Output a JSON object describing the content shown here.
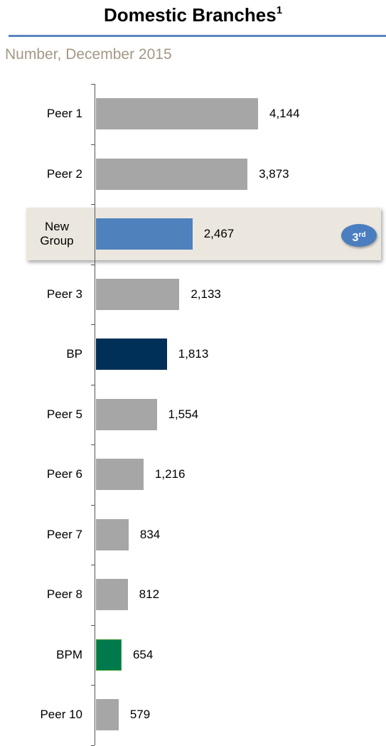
{
  "chart_data": {
    "type": "bar",
    "orientation": "horizontal",
    "title": "Domestic Branches",
    "title_footnote": "1",
    "subtitle": "Number, December 2015",
    "categories": [
      "Peer 1",
      "Peer 2",
      "New Group",
      "Peer 3",
      "BP",
      "Peer 5",
      "Peer 6",
      "Peer 7",
      "Peer 8",
      "BPM",
      "Peer 10"
    ],
    "values": [
      4144,
      3873,
      2467,
      2133,
      1813,
      1554,
      1216,
      834,
      812,
      654,
      579
    ],
    "value_labels": [
      "4,144",
      "3,873",
      "2,467",
      "2,133",
      "1,813",
      "1,554",
      "1,216",
      "834",
      "812",
      "654",
      "579"
    ],
    "colors": [
      "#a6a6a6",
      "#a6a6a6",
      "#4f81bd",
      "#a6a6a6",
      "#003057",
      "#a6a6a6",
      "#a6a6a6",
      "#a6a6a6",
      "#a6a6a6",
      "#007a4d",
      "#a6a6a6"
    ],
    "highlight": {
      "category": 2,
      "rank": "3",
      "rank_suffix": "rd"
    }
  }
}
